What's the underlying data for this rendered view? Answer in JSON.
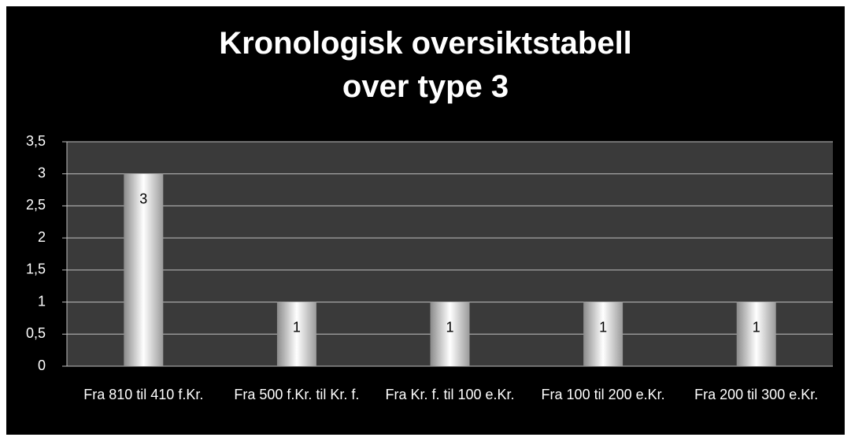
{
  "chart_data": {
    "type": "bar",
    "title": "Kronologisk oversiktstabell over type 3",
    "categories": [
      "Fra 810 til 410 f.Kr.",
      "Fra 500 f.Kr. til Kr. f.",
      "Fra Kr. f. til 100 e.Kr.",
      "Fra 100 til 200 e.Kr.",
      "Fra 200 til 300 e.Kr."
    ],
    "values": [
      3,
      1,
      1,
      1,
      1
    ],
    "ylim": [
      0,
      3.5
    ],
    "yticks": [
      0,
      {
        "value": 0.5,
        "label": "0,5"
      },
      1,
      {
        "value": 1.5,
        "label": "1,5"
      },
      2,
      {
        "value": 2.5,
        "label": "2,5"
      },
      3,
      {
        "value": 3.5,
        "label": "3,5"
      }
    ],
    "grid": true
  }
}
